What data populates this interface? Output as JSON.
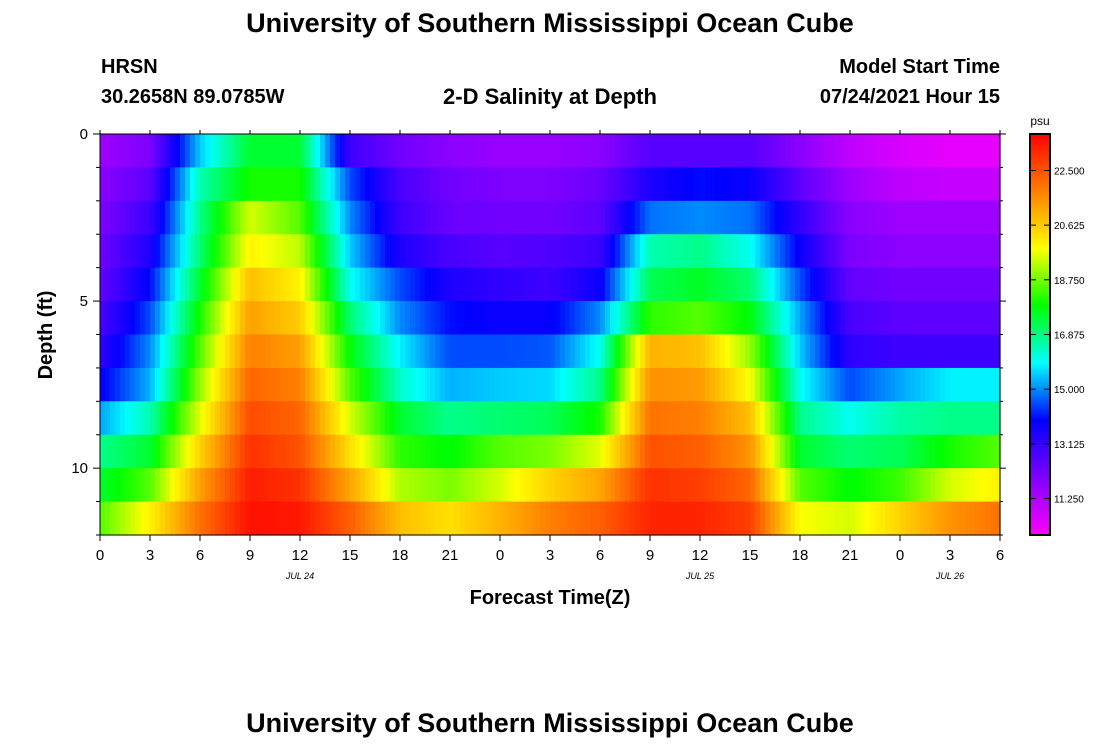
{
  "page": {
    "title_top": "University of Southern Mississippi Ocean Cube",
    "title_bottom": "University of Southern Mississippi Ocean Cube",
    "station": "HRSN",
    "coordinates": "30.2658N  89.0785W",
    "model_start_label": "Model Start Time",
    "model_start_value": "07/24/2021 Hour 15"
  },
  "chart_data": {
    "type": "heatmap",
    "title": "2-D Salinity at Depth",
    "xlabel": "Forecast Time(Z)",
    "ylabel": "Depth (ft)",
    "x_tick_labels": [
      "0",
      "3",
      "6",
      "9",
      "12",
      "15",
      "18",
      "21",
      "0",
      "3",
      "6",
      "9",
      "12",
      "15",
      "18",
      "21",
      "0",
      "3",
      "6"
    ],
    "x_range_hours": [
      0,
      54
    ],
    "date_labels": [
      {
        "hour": 12,
        "text": "JUL 24"
      },
      {
        "hour": 36,
        "text": "JUL 25"
      },
      {
        "hour": 51,
        "text": "JUL 26"
      }
    ],
    "y_ticks": [
      0,
      5,
      10
    ],
    "y_tick_labels": [
      "0",
      "5",
      "10"
    ],
    "depth_range_ft": [
      0,
      12
    ],
    "depths_ft": [
      0.5,
      1.5,
      2.5,
      3.5,
      4.5,
      5.5,
      6.5,
      7.5,
      8.5,
      9.5,
      10.5,
      11.5
    ],
    "hours": [
      0,
      3,
      6,
      9,
      12,
      15,
      18,
      21,
      24,
      27,
      30,
      33,
      36,
      39,
      42,
      45,
      48,
      51,
      54
    ],
    "salinity_psu": [
      [
        11.5,
        12.0,
        15.5,
        17.5,
        17.5,
        13.0,
        12.2,
        11.8,
        11.6,
        11.6,
        11.8,
        12.6,
        12.6,
        12.6,
        11.8,
        11.0,
        10.6,
        10.4,
        10.4
      ],
      [
        11.8,
        12.5,
        16.5,
        18.0,
        18.0,
        14.5,
        12.8,
        12.2,
        12.0,
        12.0,
        12.3,
        13.5,
        14.0,
        13.8,
        12.5,
        11.5,
        11.0,
        10.9,
        10.9
      ],
      [
        12.0,
        13.0,
        16.8,
        19.5,
        18.5,
        15.0,
        13.0,
        12.3,
        12.2,
        12.2,
        12.5,
        14.8,
        15.0,
        14.8,
        13.2,
        11.8,
        11.5,
        11.5,
        11.5
      ],
      [
        12.2,
        13.5,
        17.0,
        20.0,
        19.3,
        15.5,
        13.5,
        12.8,
        12.6,
        12.7,
        13.0,
        16.5,
        16.8,
        16.0,
        13.8,
        12.0,
        11.8,
        11.8,
        11.8
      ],
      [
        12.4,
        14.0,
        17.5,
        20.8,
        20.0,
        16.0,
        14.5,
        13.5,
        13.2,
        13.0,
        13.8,
        17.2,
        17.6,
        17.0,
        14.5,
        12.4,
        12.2,
        12.2,
        12.2
      ],
      [
        12.8,
        14.5,
        18.0,
        21.3,
        20.6,
        17.0,
        15.0,
        14.0,
        13.8,
        13.8,
        15.0,
        18.2,
        18.5,
        17.8,
        15.2,
        12.8,
        12.5,
        12.5,
        12.5
      ],
      [
        13.2,
        15.0,
        18.5,
        21.8,
        21.3,
        17.8,
        15.8,
        14.5,
        14.5,
        14.6,
        16.0,
        21.0,
        20.8,
        19.0,
        15.5,
        13.2,
        13.0,
        13.0,
        13.0
      ],
      [
        13.8,
        15.3,
        19.0,
        22.2,
        21.8,
        18.5,
        16.3,
        15.3,
        15.5,
        15.6,
        16.8,
        21.5,
        21.4,
        19.8,
        16.0,
        14.5,
        15.2,
        15.8,
        15.8
      ],
      [
        15.2,
        16.5,
        19.6,
        22.6,
        22.2,
        19.5,
        17.5,
        16.8,
        17.0,
        17.2,
        18.0,
        22.0,
        21.8,
        20.8,
        16.8,
        16.0,
        16.6,
        16.8,
        16.8
      ],
      [
        16.8,
        17.5,
        20.5,
        23.0,
        22.5,
        20.3,
        18.2,
        17.8,
        18.5,
        18.8,
        19.6,
        22.5,
        22.3,
        21.5,
        17.5,
        17.0,
        17.2,
        18.0,
        18.5
      ],
      [
        17.5,
        18.5,
        21.3,
        23.3,
        23.0,
        21.2,
        19.2,
        18.8,
        19.5,
        20.5,
        21.2,
        23.0,
        22.8,
        22.2,
        18.5,
        17.8,
        18.3,
        19.5,
        20.0
      ],
      [
        18.5,
        20.0,
        22.0,
        23.5,
        23.4,
        22.3,
        20.8,
        20.3,
        21.0,
        21.8,
        22.3,
        23.2,
        23.2,
        22.8,
        19.8,
        19.5,
        20.5,
        21.5,
        22.0
      ]
    ],
    "colorbar": {
      "unit": "psu",
      "min": 10.0,
      "max": 23.75,
      "tick_values": [
        11.25,
        13.125,
        15.0,
        16.875,
        18.75,
        20.625,
        22.5
      ],
      "tick_labels": [
        "11.250",
        "13.125",
        "15.000",
        "16.875",
        "18.750",
        "20.625",
        "22.500"
      ],
      "palette": [
        "#ff00ff",
        "#8000ff",
        "#0000ff",
        "#00ffff",
        "#00ff00",
        "#ffff00",
        "#ff8000",
        "#ff0000"
      ]
    }
  }
}
